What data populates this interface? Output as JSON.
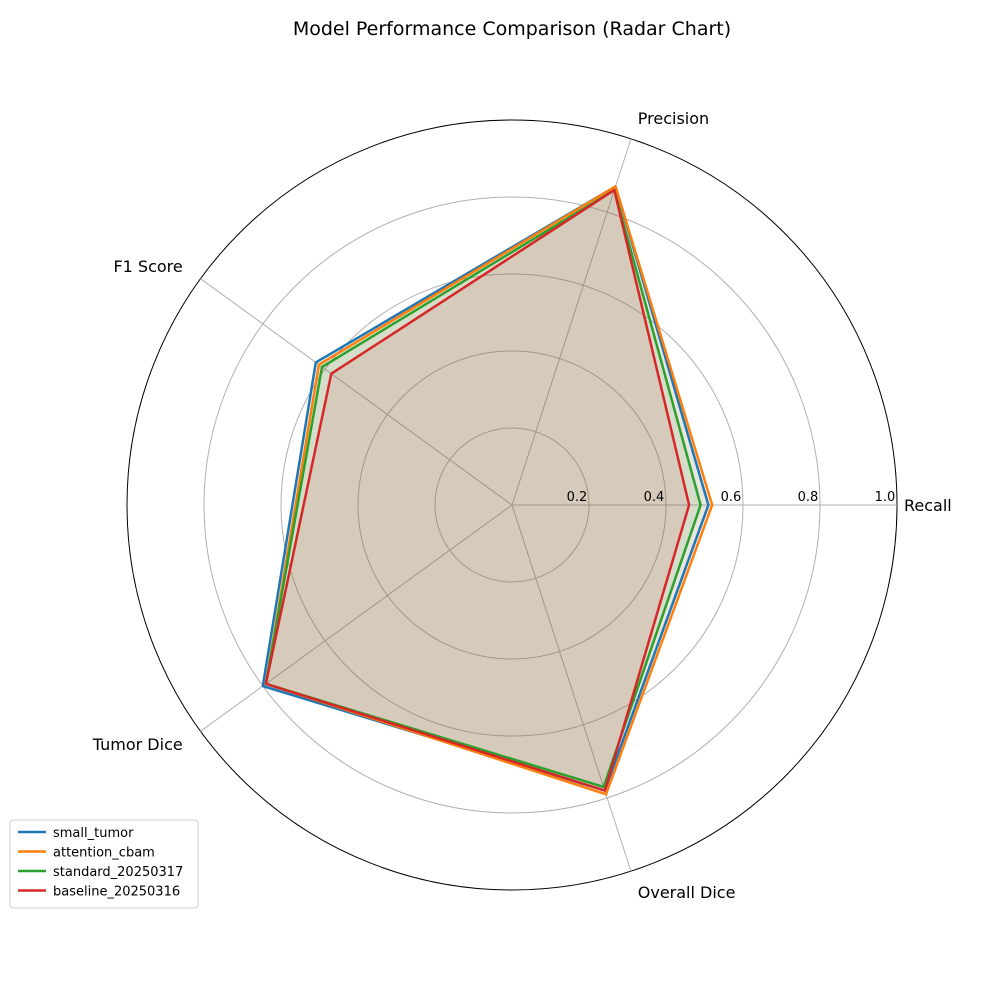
{
  "chart_data": {
    "type": "radar",
    "title": "Model Performance Comparison (Radar Chart)",
    "axes": [
      "Recall",
      "Precision",
      "F1 Score",
      "Tumor Dice",
      "Overall Dice"
    ],
    "rlim": [
      0,
      1.0
    ],
    "rticks": [
      0.2,
      0.4,
      0.6,
      0.8,
      1.0
    ],
    "rtick_labels": [
      "0.2",
      "0.4",
      "0.6",
      "0.8",
      "1.0"
    ],
    "grid": true,
    "legend_position": "lower-left",
    "series": [
      {
        "name": "small_tumor",
        "color": "#1f77b4",
        "values": [
          0.51,
          0.87,
          0.63,
          0.8,
          0.78
        ]
      },
      {
        "name": "attention_cbam",
        "color": "#ff7f0e",
        "values": [
          0.52,
          0.87,
          0.62,
          0.79,
          0.79
        ]
      },
      {
        "name": "standard_20250317",
        "color": "#2ca02c",
        "values": [
          0.49,
          0.86,
          0.61,
          0.79,
          0.77
        ]
      },
      {
        "name": "baseline_20250316",
        "color": "#d62728",
        "values": [
          0.46,
          0.86,
          0.58,
          0.79,
          0.78
        ]
      }
    ]
  }
}
